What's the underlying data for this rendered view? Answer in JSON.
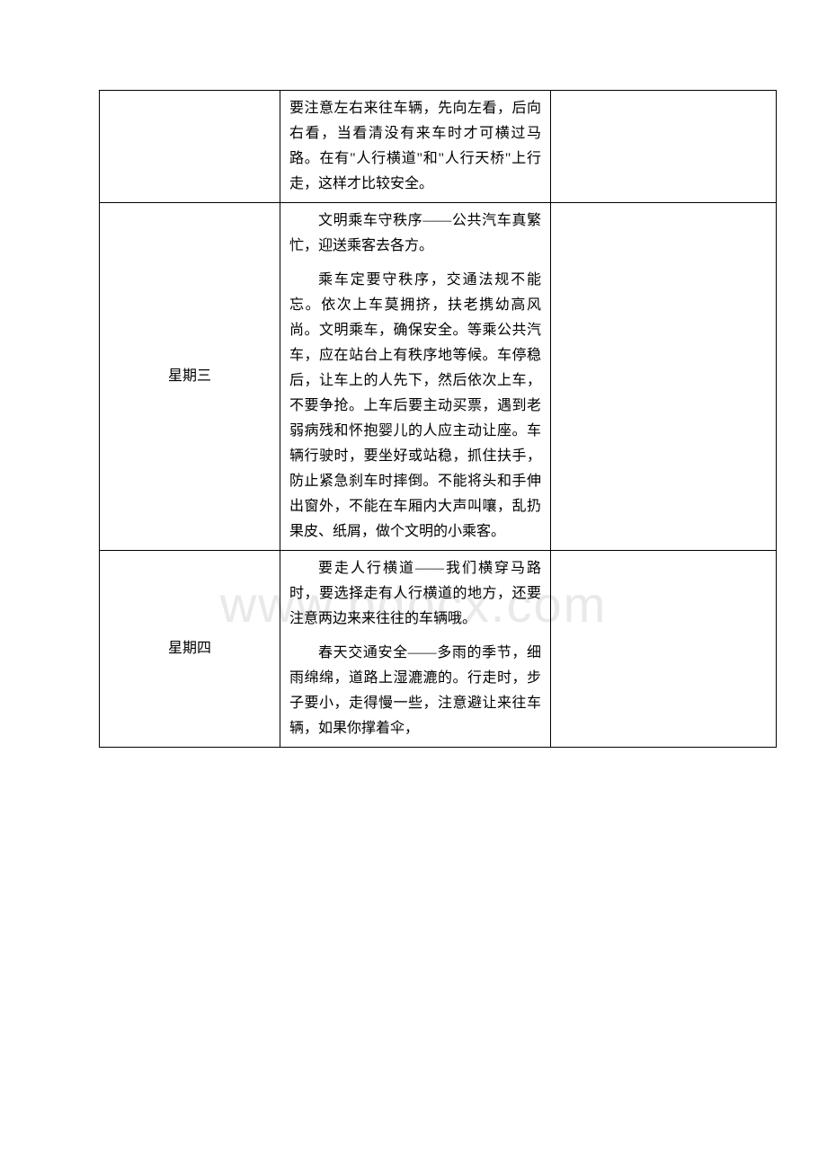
{
  "watermark": "www.bdocx.com",
  "table": {
    "rows": [
      {
        "day": "",
        "paragraphs": [
          {
            "text": "要注意左右来往车辆，先向左看，后向右看，当看清没有来车时才可横过马路。在有\"人行横道\"和\"人行天桥\"上行走，这样才比较安全。",
            "indent": false
          }
        ],
        "empty": ""
      },
      {
        "day": "星期三",
        "paragraphs": [
          {
            "text": "文明乘车守秩序——公共汽车真繁忙，迎送乘客去各方。",
            "indent": true
          },
          {
            "text": "乘车定要守秩序，交通法规不能忘。依次上车莫拥挤，扶老携幼高风尚。文明乘车，确保安全。等乘公共汽车，应在站台上有秩序地等候。车停稳后，让车上的人先下，然后依次上车，不要争抢。上车后要主动买票，遇到老弱病残和怀抱婴儿的人应主动让座。车辆行驶时，要坐好或站稳，抓住扶手，防止紧急刹车时摔倒。不能将头和手伸出窗外，不能在车厢内大声叫嚷，乱扔果皮、纸屑，做个文明的小乘客。",
            "indent": true
          }
        ],
        "empty": ""
      },
      {
        "day": "星期四",
        "paragraphs": [
          {
            "text": "要走人行横道——我们横穿马路时，要选择走有人行横道的地方，还要注意两边来来往往的车辆哦。",
            "indent": true
          },
          {
            "text": "春天交通安全——多雨的季节，细雨绵绵，道路上湿漉漉的。行走时，步子要小，走得慢一些，注意避让来往车辆，如果你撑着伞，",
            "indent": true
          }
        ],
        "empty": ""
      }
    ]
  }
}
